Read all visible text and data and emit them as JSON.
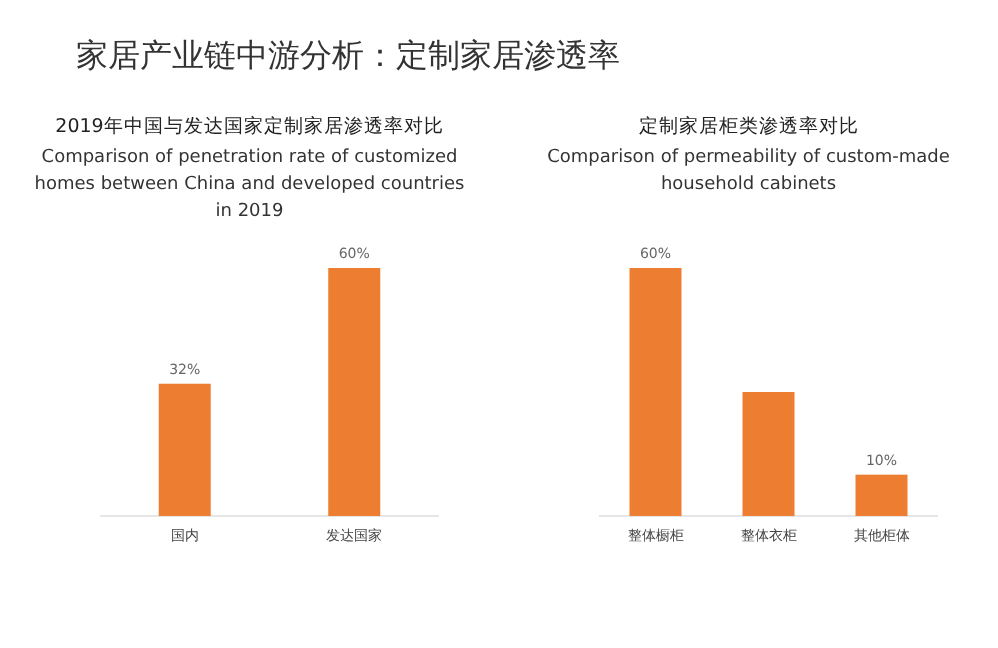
{
  "chart_data": [
    {
      "type": "bar",
      "title": "2019年中国与发达国家定制家居渗透率对比",
      "subtitle": "Comparison of penetration rate of customized homes between China and developed countries in 2019",
      "annotations": [
        "家居产业链中游分析：定制家居渗透率"
      ],
      "categories": [
        "国内",
        "发达国家"
      ],
      "values": [
        32,
        60
      ],
      "value_labels": [
        "32%",
        "60%"
      ],
      "color": "#ed7d31"
    },
    {
      "type": "bar",
      "title": "定制家居柜类渗透率对比",
      "subtitle": "Comparison of permeability of custom-made household cabinets",
      "categories": [
        "整体橱柜",
        "整体衣柜",
        "其他柜体"
      ],
      "values": [
        60,
        30,
        10
      ],
      "value_labels": [
        "60%",
        null,
        "10%"
      ],
      "color": "#ed7d31"
    }
  ]
}
